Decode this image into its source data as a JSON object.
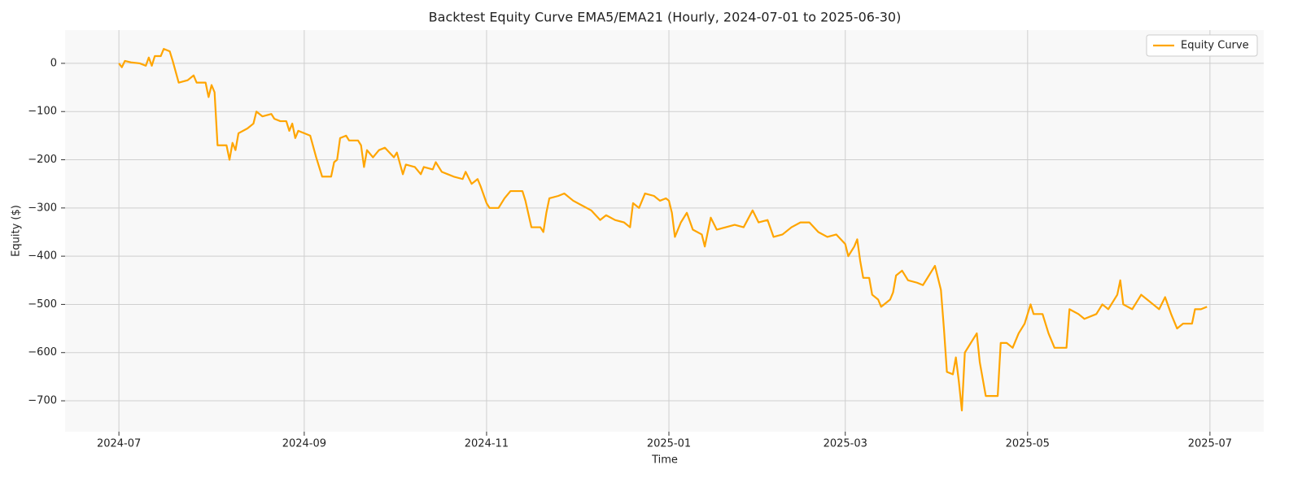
{
  "chart_data": {
    "type": "line",
    "title": "Backtest Equity Curve EMA5/EMA21 (Hourly, 2024-07-01 to 2025-06-30)",
    "x_label": "Time",
    "y_label": "Equity ($)",
    "x": [
      "2024-07-01",
      "2024-07-02",
      "2024-07-03",
      "2024-07-05",
      "2024-07-08",
      "2024-07-10",
      "2024-07-11",
      "2024-07-12",
      "2024-07-13",
      "2024-07-15",
      "2024-07-16",
      "2024-07-18",
      "2024-07-19",
      "2024-07-21",
      "2024-07-24",
      "2024-07-26",
      "2024-07-27",
      "2024-07-28",
      "2024-07-30",
      "2024-07-31",
      "2024-08-01",
      "2024-08-02",
      "2024-08-03",
      "2024-08-06",
      "2024-08-07",
      "2024-08-08",
      "2024-08-09",
      "2024-08-10",
      "2024-08-13",
      "2024-08-15",
      "2024-08-16",
      "2024-08-18",
      "2024-08-21",
      "2024-08-22",
      "2024-08-24",
      "2024-08-26",
      "2024-08-27",
      "2024-08-28",
      "2024-08-29",
      "2024-08-30",
      "2024-09-01",
      "2024-09-03",
      "2024-09-05",
      "2024-09-07",
      "2024-09-10",
      "2024-09-11",
      "2024-09-12",
      "2024-09-13",
      "2024-09-15",
      "2024-09-16",
      "2024-09-19",
      "2024-09-20",
      "2024-09-21",
      "2024-09-22",
      "2024-09-24",
      "2024-09-26",
      "2024-09-28",
      "2024-10-01",
      "2024-10-02",
      "2024-10-04",
      "2024-10-05",
      "2024-10-08",
      "2024-10-10",
      "2024-10-11",
      "2024-10-14",
      "2024-10-15",
      "2024-10-17",
      "2024-10-19",
      "2024-10-21",
      "2024-10-24",
      "2024-10-25",
      "2024-10-27",
      "2024-10-28",
      "2024-10-29",
      "2024-10-30",
      "2024-11-01",
      "2024-11-02",
      "2024-11-05",
      "2024-11-07",
      "2024-11-09",
      "2024-11-13",
      "2024-11-14",
      "2024-11-16",
      "2024-11-19",
      "2024-11-20",
      "2024-11-21",
      "2024-11-22",
      "2024-11-25",
      "2024-11-27",
      "2024-11-30",
      "2024-12-03",
      "2024-12-06",
      "2024-12-09",
      "2024-12-11",
      "2024-12-14",
      "2024-12-17",
      "2024-12-19",
      "2024-12-20",
      "2024-12-22",
      "2024-12-24",
      "2024-12-27",
      "2024-12-29",
      "2024-12-31",
      "2025-01-01",
      "2025-01-02",
      "2025-01-03",
      "2025-01-05",
      "2025-01-07",
      "2025-01-09",
      "2025-01-12",
      "2025-01-13",
      "2025-01-15",
      "2025-01-17",
      "2025-01-20",
      "2025-01-23",
      "2025-01-26",
      "2025-01-29",
      "2025-01-31",
      "2025-02-03",
      "2025-02-05",
      "2025-02-08",
      "2025-02-11",
      "2025-02-14",
      "2025-02-17",
      "2025-02-20",
      "2025-02-23",
      "2025-02-26",
      "2025-03-01",
      "2025-03-02",
      "2025-03-04",
      "2025-03-05",
      "2025-03-06",
      "2025-03-07",
      "2025-03-09",
      "2025-03-10",
      "2025-03-12",
      "2025-03-13",
      "2025-03-15",
      "2025-03-16",
      "2025-03-17",
      "2025-03-18",
      "2025-03-20",
      "2025-03-22",
      "2025-03-25",
      "2025-03-27",
      "2025-03-29",
      "2025-03-31",
      "2025-04-02",
      "2025-04-03",
      "2025-04-04",
      "2025-04-06",
      "2025-04-07",
      "2025-04-08",
      "2025-04-09",
      "2025-04-10",
      "2025-04-12",
      "2025-04-14",
      "2025-04-15",
      "2025-04-17",
      "2025-04-19",
      "2025-04-21",
      "2025-04-22",
      "2025-04-24",
      "2025-04-26",
      "2025-04-28",
      "2025-04-30",
      "2025-05-02",
      "2025-05-03",
      "2025-05-06",
      "2025-05-08",
      "2025-05-10",
      "2025-05-14",
      "2025-05-15",
      "2025-05-18",
      "2025-05-20",
      "2025-05-24",
      "2025-05-26",
      "2025-05-28",
      "2025-05-31",
      "2025-06-01",
      "2025-06-02",
      "2025-06-05",
      "2025-06-08",
      "2025-06-10",
      "2025-06-12",
      "2025-06-14",
      "2025-06-16",
      "2025-06-18",
      "2025-06-20",
      "2025-06-22",
      "2025-06-25",
      "2025-06-26",
      "2025-06-28",
      "2025-06-30"
    ],
    "series": [
      {
        "name": "Equity Curve",
        "color": "#ffa500",
        "values": [
          0,
          -8,
          5,
          2,
          0,
          -5,
          12,
          -5,
          15,
          15,
          30,
          25,
          5,
          -40,
          -35,
          -25,
          -40,
          -40,
          -40,
          -70,
          -45,
          -60,
          -170,
          -170,
          -200,
          -165,
          -180,
          -145,
          -135,
          -125,
          -100,
          -110,
          -105,
          -115,
          -120,
          -120,
          -140,
          -125,
          -155,
          -140,
          -145,
          -150,
          -195,
          -235,
          -235,
          -205,
          -200,
          -155,
          -150,
          -160,
          -160,
          -170,
          -215,
          -180,
          -195,
          -180,
          -175,
          -195,
          -185,
          -230,
          -210,
          -215,
          -230,
          -215,
          -220,
          -205,
          -225,
          -230,
          -235,
          -240,
          -225,
          -250,
          -245,
          -240,
          -255,
          -290,
          -300,
          -300,
          -280,
          -265,
          -265,
          -285,
          -340,
          -340,
          -350,
          -310,
          -280,
          -275,
          -270,
          -285,
          -295,
          -305,
          -325,
          -315,
          -325,
          -330,
          -340,
          -290,
          -300,
          -270,
          -275,
          -285,
          -280,
          -285,
          -310,
          -360,
          -330,
          -310,
          -345,
          -355,
          -380,
          -320,
          -345,
          -340,
          -335,
          -340,
          -305,
          -330,
          -325,
          -360,
          -355,
          -340,
          -330,
          -330,
          -350,
          -360,
          -355,
          -375,
          -400,
          -380,
          -365,
          -410,
          -445,
          -445,
          -480,
          -490,
          -505,
          -495,
          -490,
          -475,
          -440,
          -430,
          -450,
          -455,
          -460,
          -440,
          -420,
          -470,
          -550,
          -640,
          -645,
          -610,
          -660,
          -720,
          -600,
          -580,
          -560,
          -620,
          -690,
          -690,
          -690,
          -580,
          -580,
          -590,
          -560,
          -540,
          -500,
          -520,
          -520,
          -560,
          -590,
          -590,
          -510,
          -520,
          -530,
          -520,
          -500,
          -510,
          -480,
          -450,
          -500,
          -510,
          -480,
          -490,
          -500,
          -510,
          -485,
          -520,
          -550,
          -540,
          -540,
          -510,
          -510,
          -505
        ]
      }
    ],
    "xlim": [
      "2024-06-13",
      "2025-07-19"
    ],
    "xticks": [
      {
        "value": "2024-07-01",
        "label": "2024-07"
      },
      {
        "value": "2024-09-01",
        "label": "2024-09"
      },
      {
        "value": "2024-11-01",
        "label": "2024-11"
      },
      {
        "value": "2025-01-01",
        "label": "2025-01"
      },
      {
        "value": "2025-03-01",
        "label": "2025-03"
      },
      {
        "value": "2025-05-01",
        "label": "2025-05"
      },
      {
        "value": "2025-07-01",
        "label": "2025-07"
      }
    ],
    "ylim": [
      -764,
      69
    ],
    "yticks": [
      {
        "value": -700,
        "label": "−700"
      },
      {
        "value": -600,
        "label": "−600"
      },
      {
        "value": -500,
        "label": "−500"
      },
      {
        "value": -400,
        "label": "−400"
      },
      {
        "value": -300,
        "label": "−300"
      },
      {
        "value": -200,
        "label": "−200"
      },
      {
        "value": -100,
        "label": "−100"
      },
      0
    ],
    "grid": true,
    "legend": "upper right"
  }
}
